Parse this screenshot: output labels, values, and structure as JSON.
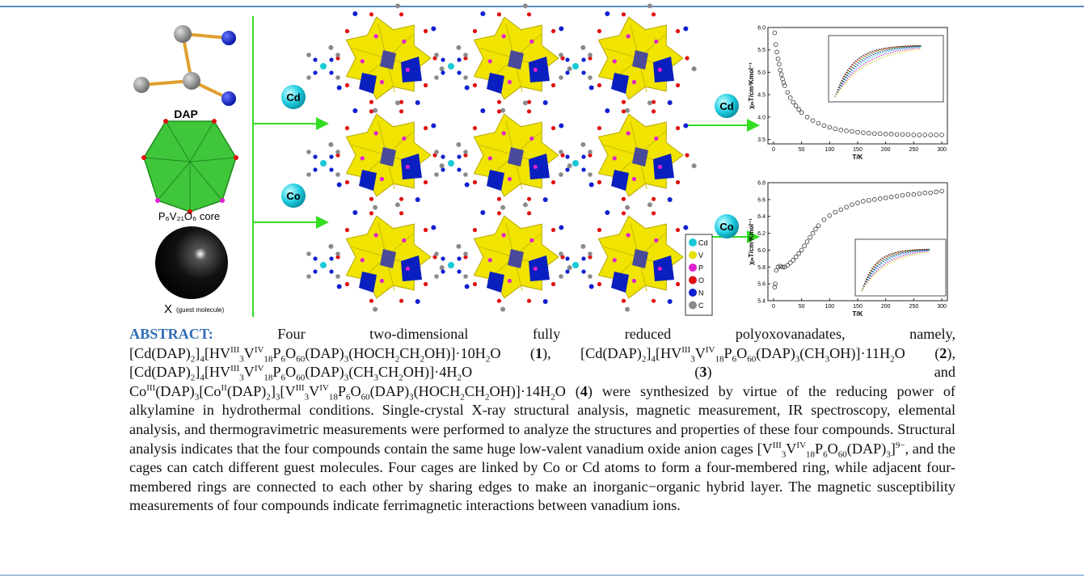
{
  "graphic": {
    "molecule_label": "DAP",
    "core_label": "P₆V₂₁O₆ core",
    "guest_symbol": "X",
    "guest_note": "(guest molecule)",
    "left_badges": [
      "Cd",
      "Co"
    ],
    "right_badges": [
      "Cd",
      "Co"
    ],
    "legend": [
      {
        "label": "Cd",
        "color": "#19c9d6"
      },
      {
        "label": "V",
        "color": "#e8e000"
      },
      {
        "label": "P",
        "color": "#e020d0"
      },
      {
        "label": "O",
        "color": "#e01010"
      },
      {
        "label": "N",
        "color": "#1020d0"
      },
      {
        "label": "C",
        "color": "#8a8a8a"
      }
    ]
  },
  "chart_data": [
    {
      "type": "scatter",
      "xlabel": "T/K",
      "ylabel": "χₘT/cm³Kmol⁻¹",
      "color": "#333333",
      "xlim": [
        -10,
        310
      ],
      "ylim": [
        3.4,
        6.0
      ],
      "xticks": [
        0,
        50,
        100,
        150,
        200,
        250,
        300
      ],
      "yticks": [
        3.5,
        {
          "value": 4,
          "label": "4.0"
        },
        4.5,
        {
          "value": 5,
          "label": "5.0"
        },
        5.5,
        {
          "value": 6,
          "label": "6.0"
        }
      ],
      "x": [
        2,
        4,
        6,
        8,
        10,
        12,
        14,
        16,
        18,
        20,
        25,
        30,
        35,
        40,
        45,
        50,
        60,
        70,
        80,
        90,
        100,
        110,
        120,
        130,
        140,
        150,
        160,
        170,
        180,
        190,
        200,
        210,
        220,
        230,
        240,
        250,
        260,
        270,
        280,
        290,
        300
      ],
      "values": [
        5.88,
        5.62,
        5.45,
        5.3,
        5.18,
        5.05,
        4.95,
        4.85,
        4.77,
        4.7,
        4.55,
        4.43,
        4.33,
        4.25,
        4.17,
        4.1,
        4.0,
        3.92,
        3.86,
        3.81,
        3.77,
        3.74,
        3.71,
        3.69,
        3.68,
        3.66,
        3.65,
        3.64,
        3.63,
        3.63,
        3.62,
        3.62,
        3.61,
        3.61,
        3.61,
        3.6,
        3.6,
        3.6,
        3.6,
        3.6,
        3.6
      ]
    },
    {
      "type": "scatter",
      "xlabel": "T/K",
      "ylabel": "χₘT/cm³Kmol⁻¹",
      "color": "#333333",
      "xlim": [
        -10,
        310
      ],
      "ylim": [
        5.4,
        6.8
      ],
      "xticks": [
        0,
        50,
        100,
        150,
        200,
        250,
        300
      ],
      "yticks": [
        5.4,
        5.6,
        5.8,
        {
          "value": 6,
          "label": "6.0"
        },
        6.2,
        6.4,
        6.6,
        6.8
      ],
      "x": [
        2,
        3,
        5,
        8,
        12,
        16,
        20,
        25,
        30,
        35,
        40,
        45,
        50,
        55,
        60,
        65,
        70,
        75,
        80,
        90,
        100,
        110,
        120,
        130,
        140,
        150,
        160,
        170,
        180,
        190,
        200,
        210,
        220,
        230,
        240,
        250,
        260,
        270,
        280,
        290,
        300
      ],
      "values": [
        5.56,
        5.6,
        5.76,
        5.8,
        5.81,
        5.8,
        5.8,
        5.82,
        5.85,
        5.88,
        5.92,
        5.96,
        6.0,
        6.05,
        6.1,
        6.15,
        6.2,
        6.25,
        6.29,
        6.36,
        6.41,
        6.45,
        6.48,
        6.51,
        6.54,
        6.56,
        6.58,
        6.59,
        6.6,
        6.61,
        6.62,
        6.63,
        6.64,
        6.65,
        6.66,
        6.66,
        6.67,
        6.68,
        6.68,
        6.69,
        6.7
      ]
    }
  ],
  "abstract": {
    "label": "ABSTRACT:",
    "runs": [
      {
        "text": "Four two-dimensional fully reduced polyoxovanadates, namely, [Cd(DAP)"
      },
      {
        "text": "2",
        "style": "sub"
      },
      {
        "text": "]"
      },
      {
        "text": "4",
        "style": "sub"
      },
      {
        "text": "[HV"
      },
      {
        "text": "III",
        "style": "sup"
      },
      {
        "text": "3",
        "style": "sub"
      },
      {
        "text": "V"
      },
      {
        "text": "IV",
        "style": "sup"
      },
      {
        "text": "18",
        "style": "sub"
      },
      {
        "text": "P"
      },
      {
        "text": "6",
        "style": "sub"
      },
      {
        "text": "O"
      },
      {
        "text": "60",
        "style": "sub"
      },
      {
        "text": "(DAP)"
      },
      {
        "text": "3",
        "style": "sub"
      },
      {
        "text": "(HOCH"
      },
      {
        "text": "2",
        "style": "sub"
      },
      {
        "text": "CH"
      },
      {
        "text": "2",
        "style": "sub"
      },
      {
        "text": "OH)]·10H"
      },
      {
        "text": "2",
        "style": "sub"
      },
      {
        "text": "O ("
      },
      {
        "text": "1",
        "style": "bold"
      },
      {
        "text": "), [Cd(DAP)"
      },
      {
        "text": "2",
        "style": "sub"
      },
      {
        "text": "]"
      },
      {
        "text": "4",
        "style": "sub"
      },
      {
        "text": "[HV"
      },
      {
        "text": "III",
        "style": "sup"
      },
      {
        "text": "3",
        "style": "sub"
      },
      {
        "text": "V"
      },
      {
        "text": "IV",
        "style": "sup"
      },
      {
        "text": "18",
        "style": "sub"
      },
      {
        "text": "P"
      },
      {
        "text": "6",
        "style": "sub"
      },
      {
        "text": "O"
      },
      {
        "text": "60",
        "style": "sub"
      },
      {
        "text": "(DAP)"
      },
      {
        "text": "3",
        "style": "sub"
      },
      {
        "text": "(CH"
      },
      {
        "text": "3",
        "style": "sub"
      },
      {
        "text": "OH)]·11H"
      },
      {
        "text": "2",
        "style": "sub"
      },
      {
        "text": "O ("
      },
      {
        "text": "2",
        "style": "bold"
      },
      {
        "text": "), [Cd(DAP)"
      },
      {
        "text": "2",
        "style": "sub"
      },
      {
        "text": "]"
      },
      {
        "text": "4",
        "style": "sub"
      },
      {
        "text": "[HV"
      },
      {
        "text": "III",
        "style": "sup"
      },
      {
        "text": "3",
        "style": "sub"
      },
      {
        "text": "V"
      },
      {
        "text": "IV",
        "style": "sup"
      },
      {
        "text": "18",
        "style": "sub"
      },
      {
        "text": "P"
      },
      {
        "text": "6",
        "style": "sub"
      },
      {
        "text": "O"
      },
      {
        "text": "60",
        "style": "sub"
      },
      {
        "text": "(DAP)"
      },
      {
        "text": "3",
        "style": "sub"
      },
      {
        "text": "(CH"
      },
      {
        "text": "3",
        "style": "sub"
      },
      {
        "text": "CH"
      },
      {
        "text": "2",
        "style": "sub"
      },
      {
        "text": "OH)]·4H"
      },
      {
        "text": "2",
        "style": "sub"
      },
      {
        "text": "O ("
      },
      {
        "text": "3",
        "style": "bold"
      },
      {
        "text": ") and Co"
      },
      {
        "text": "III",
        "style": "sup"
      },
      {
        "text": "(DAP)"
      },
      {
        "text": "3",
        "style": "sub"
      },
      {
        "text": "[Co"
      },
      {
        "text": "II",
        "style": "sup"
      },
      {
        "text": "(DAP)"
      },
      {
        "text": "2",
        "style": "sub"
      },
      {
        "text": "]"
      },
      {
        "text": "3",
        "style": "sub"
      },
      {
        "text": "[V"
      },
      {
        "text": "III",
        "style": "sup"
      },
      {
        "text": "3",
        "style": "sub"
      },
      {
        "text": "V"
      },
      {
        "text": "IV",
        "style": "sup"
      },
      {
        "text": "18",
        "style": "sub"
      },
      {
        "text": "P"
      },
      {
        "text": "6",
        "style": "sub"
      },
      {
        "text": "O"
      },
      {
        "text": "60",
        "style": "sub"
      },
      {
        "text": "(DAP)"
      },
      {
        "text": "3",
        "style": "sub"
      },
      {
        "text": "(HOCH"
      },
      {
        "text": "2",
        "style": "sub"
      },
      {
        "text": "CH"
      },
      {
        "text": "2",
        "style": "sub"
      },
      {
        "text": "OH)]·14H"
      },
      {
        "text": "2",
        "style": "sub"
      },
      {
        "text": "O ("
      },
      {
        "text": "4",
        "style": "bold"
      },
      {
        "text": ") were synthesized by virtue of the reducing power of alkylamine in hydrothermal conditions. Single-crystal X-ray structural analysis, magnetic measurement, IR spectroscopy, elemental analysis, and thermogravimetric measurements were performed to analyze the structures and properties of these four compounds. Structural analysis indicates that the four compounds contain the same huge low-valent vanadium oxide anion cages [V"
      },
      {
        "text": "III",
        "style": "sup"
      },
      {
        "text": "3",
        "style": "sub"
      },
      {
        "text": "V"
      },
      {
        "text": "IV",
        "style": "sup"
      },
      {
        "text": "18",
        "style": "sub"
      },
      {
        "text": "P"
      },
      {
        "text": "6",
        "style": "sub"
      },
      {
        "text": "O"
      },
      {
        "text": "60",
        "style": "sub"
      },
      {
        "text": "(DAP)"
      },
      {
        "text": "3",
        "style": "sub"
      },
      {
        "text": "]"
      },
      {
        "text": "9−",
        "style": "sup"
      },
      {
        "text": ", and the cages can catch different guest molecules. Four cages are linked by Co or Cd atoms to form a four-membered ring, while adjacent four-membered rings are connected to each other by sharing edges to make an inorganic−organic hybrid layer. The magnetic susceptibility measurements of four compounds indicate ferrimagnetic interactions between vanadium ions."
      }
    ]
  }
}
